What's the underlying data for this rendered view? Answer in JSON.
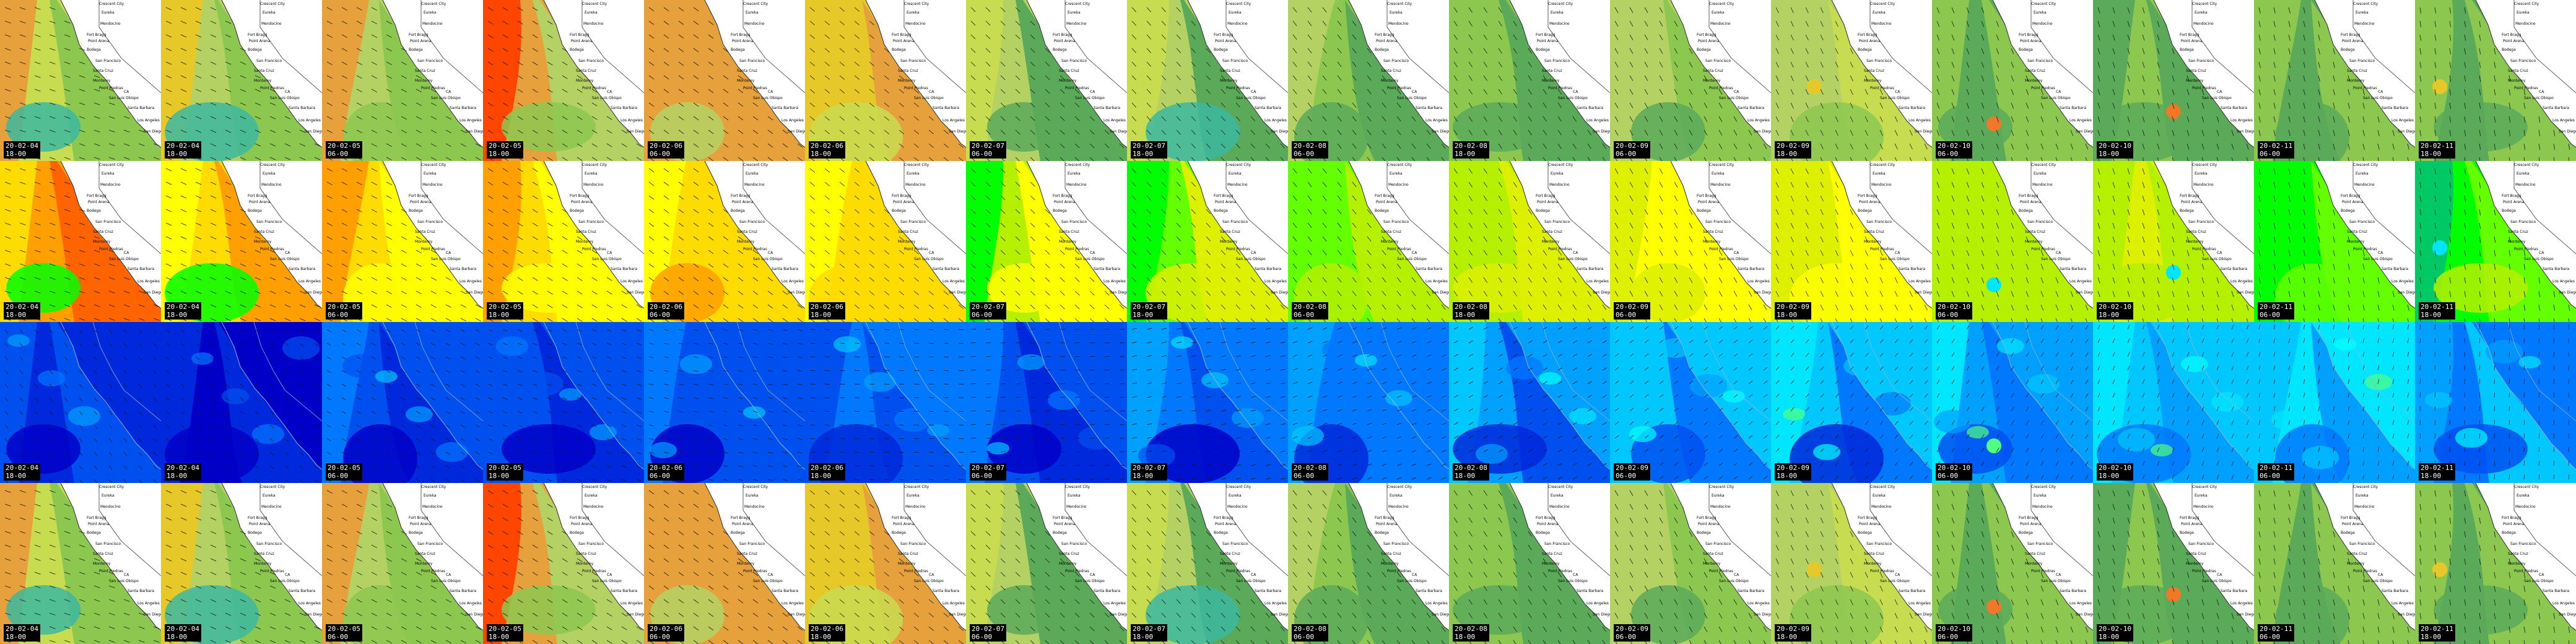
{
  "palettes": {
    "wave": [
      "#3cb9a0",
      "#5aaa5a",
      "#8cc850",
      "#b4d264",
      "#c8dc50",
      "#e6c828",
      "#e6a03c",
      "#f07828",
      "#ff4600"
    ],
    "period": [
      "#00c864",
      "#00ff00",
      "#64ff00",
      "#b4f000",
      "#dcf000",
      "#ffff00",
      "#ffdc00",
      "#ffa000",
      "#ff6400"
    ],
    "wind": [
      "#0000c8",
      "#0028dc",
      "#0050f0",
      "#0078ff",
      "#00a0ff",
      "#00c8ff",
      "#00e6ff",
      "#00ffff",
      "#50ff80"
    ]
  },
  "place_names": [
    "Crescent City",
    "Eureka",
    "Mendocino",
    "Fort Bragg",
    "Point Arena",
    "Bodega",
    "San Francisco",
    "Santa Cruz",
    "Monterey",
    "Point Piedras",
    "CA",
    "San Luis Obispo",
    "Santa Barbara",
    "Los Angeles",
    "San Diego"
  ],
  "rows": [
    {
      "layer": "wave",
      "tiles": [
        {
          "date": "20-02-04",
          "time": "18-00",
          "levels": [
            6,
            4,
            2,
            0
          ],
          "accent": ""
        },
        {
          "date": "20-02-04",
          "time": "18-00",
          "levels": [
            5,
            3,
            2,
            0
          ],
          "accent": ""
        },
        {
          "date": "20-02-05",
          "time": "06-00",
          "levels": [
            6,
            3,
            2,
            2
          ],
          "accent": ""
        },
        {
          "date": "20-02-05",
          "time": "18-00",
          "levels": [
            8,
            6,
            3,
            2
          ],
          "accent": ""
        },
        {
          "date": "20-02-06",
          "time": "06-00",
          "levels": [
            6,
            6,
            6,
            3
          ],
          "accent": ""
        },
        {
          "date": "20-02-06",
          "time": "18-00",
          "levels": [
            5,
            5,
            6,
            4
          ],
          "accent": ""
        },
        {
          "date": "20-02-07",
          "time": "06-00",
          "levels": [
            4,
            3,
            1,
            1
          ],
          "accent": ""
        },
        {
          "date": "20-02-07",
          "time": "18-00",
          "levels": [
            4,
            3,
            1,
            0
          ],
          "accent": ""
        },
        {
          "date": "20-02-08",
          "time": "06-00",
          "levels": [
            3,
            2,
            1,
            1
          ],
          "accent": ""
        },
        {
          "date": "20-02-08",
          "time": "18-00",
          "levels": [
            2,
            2,
            1,
            1
          ],
          "accent": ""
        },
        {
          "date": "20-02-09",
          "time": "06-00",
          "levels": [
            3,
            3,
            2,
            1
          ],
          "accent": ""
        },
        {
          "date": "20-02-09",
          "time": "18-00",
          "levels": [
            3,
            3,
            4,
            2
          ],
          "accent": "#e6c828"
        },
        {
          "date": "20-02-10",
          "time": "06-00",
          "levels": [
            2,
            1,
            2,
            1
          ],
          "accent": "#f07828"
        },
        {
          "date": "20-02-10",
          "time": "18-00",
          "levels": [
            1,
            2,
            1,
            1
          ],
          "accent": "#f07828"
        },
        {
          "date": "20-02-11",
          "time": "06-00",
          "levels": [
            2,
            1,
            2,
            1
          ],
          "accent": ""
        },
        {
          "date": "20-02-11",
          "time": "18-00",
          "levels": [
            2,
            1,
            2,
            1
          ],
          "accent": "#e6c828"
        }
      ]
    },
    {
      "layer": "period",
      "tiles": [
        {
          "date": "20-02-04",
          "time": "18-00",
          "levels": [
            6,
            7,
            8,
            1
          ],
          "accent": ""
        },
        {
          "date": "20-02-04",
          "time": "18-00",
          "levels": [
            5,
            6,
            7,
            1
          ],
          "accent": ""
        },
        {
          "date": "20-02-05",
          "time": "06-00",
          "levels": [
            7,
            6,
            5,
            5
          ],
          "accent": ""
        },
        {
          "date": "20-02-05",
          "time": "18-00",
          "levels": [
            7,
            6,
            5,
            5
          ],
          "accent": ""
        },
        {
          "date": "20-02-06",
          "time": "06-00",
          "levels": [
            5,
            6,
            6,
            7
          ],
          "accent": ""
        },
        {
          "date": "20-02-06",
          "time": "18-00",
          "levels": [
            5,
            6,
            6,
            6
          ],
          "accent": ""
        },
        {
          "date": "20-02-07",
          "time": "06-00",
          "levels": [
            1,
            3,
            5,
            5
          ],
          "accent": ""
        },
        {
          "date": "20-02-07",
          "time": "18-00",
          "levels": [
            1,
            2,
            4,
            4
          ],
          "accent": ""
        },
        {
          "date": "20-02-08",
          "time": "06-00",
          "levels": [
            2,
            2,
            3,
            3
          ],
          "accent": ""
        },
        {
          "date": "20-02-08",
          "time": "18-00",
          "levels": [
            3,
            3,
            4,
            4
          ],
          "accent": ""
        },
        {
          "date": "20-02-09",
          "time": "06-00",
          "levels": [
            4,
            5,
            5,
            4
          ],
          "accent": ""
        },
        {
          "date": "20-02-09",
          "time": "18-00",
          "levels": [
            4,
            4,
            5,
            5
          ],
          "accent": ""
        },
        {
          "date": "20-02-10",
          "time": "06-00",
          "levels": [
            3,
            3,
            3,
            3
          ],
          "accent": "#00e6ff"
        },
        {
          "date": "20-02-10",
          "time": "18-00",
          "levels": [
            3,
            4,
            3,
            3
          ],
          "accent": "#00e6ff"
        },
        {
          "date": "20-02-11",
          "time": "06-00",
          "levels": [
            1,
            1,
            2,
            2
          ],
          "accent": ""
        },
        {
          "date": "20-02-11",
          "time": "18-00",
          "levels": [
            0,
            1,
            2,
            3
          ],
          "accent": "#00e6ff"
        }
      ]
    },
    {
      "layer": "wind",
      "tiles": [
        {
          "date": "20-02-04",
          "time": "18-00",
          "levels": [
            2,
            1,
            2,
            0
          ],
          "accent": ""
        },
        {
          "date": "20-02-04",
          "time": "18-00",
          "levels": [
            1,
            0,
            1,
            0
          ],
          "accent": ""
        },
        {
          "date": "20-02-05",
          "time": "06-00",
          "levels": [
            3,
            2,
            1,
            0
          ],
          "accent": ""
        },
        {
          "date": "20-02-05",
          "time": "18-00",
          "levels": [
            2,
            2,
            1,
            0
          ],
          "accent": ""
        },
        {
          "date": "20-02-06",
          "time": "06-00",
          "levels": [
            3,
            2,
            2,
            0
          ],
          "accent": ""
        },
        {
          "date": "20-02-06",
          "time": "18-00",
          "levels": [
            2,
            3,
            2,
            1
          ],
          "accent": ""
        },
        {
          "date": "20-02-07",
          "time": "06-00",
          "levels": [
            3,
            2,
            1,
            0
          ],
          "accent": ""
        },
        {
          "date": "20-02-07",
          "time": "18-00",
          "levels": [
            4,
            3,
            2,
            0
          ],
          "accent": ""
        },
        {
          "date": "20-02-08",
          "time": "06-00",
          "levels": [
            4,
            3,
            3,
            1
          ],
          "accent": ""
        },
        {
          "date": "20-02-08",
          "time": "18-00",
          "levels": [
            5,
            4,
            2,
            1
          ],
          "accent": ""
        },
        {
          "date": "20-02-09",
          "time": "06-00",
          "levels": [
            5,
            5,
            3,
            2
          ],
          "accent": ""
        },
        {
          "date": "20-02-09",
          "time": "18-00",
          "levels": [
            6,
            5,
            3,
            1
          ],
          "accent": ""
        },
        {
          "date": "20-02-10",
          "time": "06-00",
          "levels": [
            6,
            4,
            3,
            2
          ],
          "accent": "#50ff80"
        },
        {
          "date": "20-02-10",
          "time": "18-00",
          "levels": [
            6,
            5,
            4,
            3
          ],
          "accent": ""
        },
        {
          "date": "20-02-11",
          "time": "06-00",
          "levels": [
            5,
            6,
            4,
            3
          ],
          "accent": ""
        },
        {
          "date": "20-02-11",
          "time": "18-00",
          "levels": [
            4,
            3,
            5,
            2
          ],
          "accent": ""
        }
      ]
    },
    {
      "layer": "wave",
      "tiles": [
        {
          "date": "20-02-04",
          "time": "18-00",
          "levels": [
            6,
            4,
            2,
            0
          ],
          "accent": ""
        },
        {
          "date": "20-02-04",
          "time": "18-00",
          "levels": [
            5,
            3,
            2,
            0
          ],
          "accent": ""
        },
        {
          "date": "20-02-05",
          "time": "06-00",
          "levels": [
            6,
            3,
            2,
            2
          ],
          "accent": ""
        },
        {
          "date": "20-02-05",
          "time": "18-00",
          "levels": [
            8,
            6,
            3,
            2
          ],
          "accent": ""
        },
        {
          "date": "20-02-06",
          "time": "06-00",
          "levels": [
            6,
            6,
            6,
            3
          ],
          "accent": ""
        },
        {
          "date": "20-02-06",
          "time": "18-00",
          "levels": [
            5,
            5,
            6,
            4
          ],
          "accent": ""
        },
        {
          "date": "20-02-07",
          "time": "06-00",
          "levels": [
            4,
            3,
            1,
            1
          ],
          "accent": ""
        },
        {
          "date": "20-02-07",
          "time": "18-00",
          "levels": [
            4,
            3,
            1,
            0
          ],
          "accent": ""
        },
        {
          "date": "20-02-08",
          "time": "06-00",
          "levels": [
            3,
            2,
            1,
            1
          ],
          "accent": ""
        },
        {
          "date": "20-02-08",
          "time": "18-00",
          "levels": [
            2,
            2,
            1,
            1
          ],
          "accent": ""
        },
        {
          "date": "20-02-09",
          "time": "06-00",
          "levels": [
            3,
            3,
            2,
            1
          ],
          "accent": ""
        },
        {
          "date": "20-02-09",
          "time": "18-00",
          "levels": [
            3,
            3,
            4,
            2
          ],
          "accent": "#e6c828"
        },
        {
          "date": "20-02-10",
          "time": "06-00",
          "levels": [
            2,
            1,
            2,
            1
          ],
          "accent": "#f07828"
        },
        {
          "date": "20-02-10",
          "time": "18-00",
          "levels": [
            1,
            2,
            1,
            1
          ],
          "accent": "#f07828"
        },
        {
          "date": "20-02-11",
          "time": "06-00",
          "levels": [
            2,
            1,
            2,
            1
          ],
          "accent": ""
        },
        {
          "date": "20-02-11",
          "time": "18-00",
          "levels": [
            2,
            1,
            2,
            1
          ],
          "accent": "#e6c828"
        }
      ]
    }
  ]
}
